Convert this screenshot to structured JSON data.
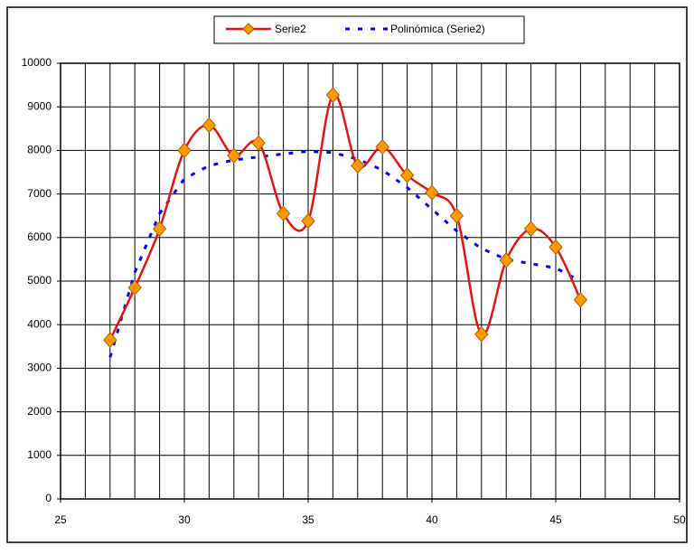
{
  "chart_data": {
    "type": "line",
    "x": [
      27,
      28,
      29,
      30,
      31,
      32,
      33,
      34,
      35,
      36,
      37,
      38,
      39,
      40,
      41,
      42,
      43,
      44,
      45,
      46
    ],
    "series": [
      {
        "name": "Serie2",
        "color": "#e8120c",
        "marker_color": "#ff9900",
        "values": [
          3650,
          4850,
          6200,
          8000,
          8580,
          7880,
          8170,
          6550,
          6380,
          9270,
          7650,
          8080,
          7430,
          7030,
          6500,
          3780,
          5480,
          6200,
          5780,
          4570
        ]
      },
      {
        "name": "Polinómica (Serie2)",
        "color": "#0000ff",
        "dashed": true,
        "values": [
          3250,
          5200,
          6550,
          7350,
          7650,
          7780,
          7850,
          7920,
          7980,
          7950,
          7800,
          7550,
          7150,
          6650,
          6150,
          5750,
          5500,
          5400,
          5300,
          5000
        ]
      }
    ],
    "xlim": [
      25,
      50
    ],
    "xticks": [
      25,
      30,
      35,
      40,
      45,
      50
    ],
    "minor_xticks": [
      26,
      27,
      28,
      29,
      31,
      32,
      33,
      34,
      36,
      37,
      38,
      39,
      41,
      42,
      43,
      44,
      46,
      47,
      48,
      49
    ],
    "ylim": [
      0,
      10000
    ],
    "yticks": [
      0,
      1000,
      2000,
      3000,
      4000,
      5000,
      6000,
      7000,
      8000,
      9000,
      10000
    ],
    "grid": true,
    "legend": "top"
  }
}
